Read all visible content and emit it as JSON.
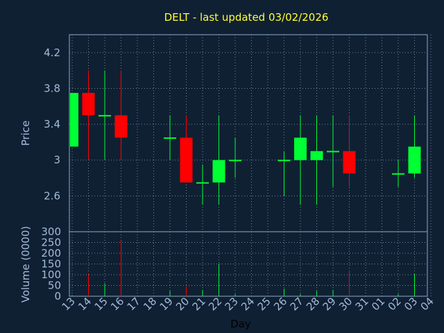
{
  "chart_data": [
    {
      "type": "candlestick",
      "title": "DELT - last updated 03/02/2026",
      "ylabel": "Price",
      "xlabel": "Day",
      "ylim": [
        2.2,
        4.4
      ],
      "yticks": [
        "4.2",
        "3.8",
        "3.4",
        "3",
        "2.6"
      ],
      "categories": [
        "13",
        "14",
        "15",
        "16",
        "17",
        "18",
        "19",
        "20",
        "21",
        "22",
        "23",
        "24",
        "25",
        "26",
        "27",
        "28",
        "29",
        "30",
        "31",
        "01",
        "02",
        "03",
        "04"
      ],
      "candles": [
        {
          "x": "13",
          "open": 3.15,
          "high": 3.75,
          "low": 3.15,
          "close": 3.75
        },
        {
          "x": "14",
          "open": 3.75,
          "high": 4.0,
          "low": 3.0,
          "close": 3.5
        },
        {
          "x": "15",
          "open": 3.49,
          "high": 4.0,
          "low": 3.0,
          "close": 3.5
        },
        {
          "x": "16",
          "open": 3.5,
          "high": 4.0,
          "low": 3.0,
          "close": 3.25
        },
        {
          "x": "19",
          "open": 3.24,
          "high": 3.5,
          "low": 3.0,
          "close": 3.25
        },
        {
          "x": "20",
          "open": 3.25,
          "high": 3.5,
          "low": 2.75,
          "close": 2.75
        },
        {
          "x": "21",
          "open": 2.74,
          "high": 2.95,
          "low": 2.5,
          "close": 2.75
        },
        {
          "x": "22",
          "open": 2.75,
          "high": 3.5,
          "low": 2.5,
          "close": 3.0
        },
        {
          "x": "23",
          "open": 2.99,
          "high": 3.25,
          "low": 2.8,
          "close": 3.0
        },
        {
          "x": "26",
          "open": 2.99,
          "high": 3.1,
          "low": 2.6,
          "close": 3.0
        },
        {
          "x": "27",
          "open": 3.0,
          "high": 3.5,
          "low": 2.5,
          "close": 3.25
        },
        {
          "x": "28",
          "open": 3.0,
          "high": 3.5,
          "low": 2.5,
          "close": 3.1
        },
        {
          "x": "29",
          "open": 3.09,
          "high": 3.5,
          "low": 2.7,
          "close": 3.1
        },
        {
          "x": "30",
          "open": 3.1,
          "high": 3.5,
          "low": 2.7,
          "close": 2.85
        },
        {
          "x": "02",
          "open": 2.84,
          "high": 3.0,
          "low": 2.7,
          "close": 2.85
        },
        {
          "x": "03",
          "open": 2.85,
          "high": 3.5,
          "low": 2.8,
          "close": 3.15
        }
      ],
      "colors": {
        "up": "#00ff33",
        "down": "#ff0000"
      }
    },
    {
      "type": "bar",
      "ylabel": "Volume (0000)",
      "ylim": [
        0,
        300
      ],
      "yticks": [
        "300",
        "250",
        "200",
        "150",
        "100",
        "50",
        "0"
      ],
      "categories": [
        "13",
        "14",
        "15",
        "16",
        "17",
        "18",
        "19",
        "20",
        "21",
        "22",
        "23",
        "24",
        "25",
        "26",
        "27",
        "28",
        "29",
        "30",
        "31",
        "01",
        "02",
        "03",
        "04"
      ],
      "bars": [
        {
          "x": "13",
          "value": 5,
          "direction": "up"
        },
        {
          "x": "14",
          "value": 105,
          "direction": "down"
        },
        {
          "x": "15",
          "value": 60,
          "direction": "up"
        },
        {
          "x": "16",
          "value": 260,
          "direction": "down"
        },
        {
          "x": "19",
          "value": 25,
          "direction": "up"
        },
        {
          "x": "20",
          "value": 45,
          "direction": "down"
        },
        {
          "x": "21",
          "value": 30,
          "direction": "up"
        },
        {
          "x": "22",
          "value": 150,
          "direction": "up"
        },
        {
          "x": "23",
          "value": 10,
          "direction": "up"
        },
        {
          "x": "26",
          "value": 35,
          "direction": "up"
        },
        {
          "x": "27",
          "value": 10,
          "direction": "up"
        },
        {
          "x": "28",
          "value": 25,
          "direction": "up"
        },
        {
          "x": "29",
          "value": 30,
          "direction": "up"
        },
        {
          "x": "30",
          "value": 120,
          "direction": "down"
        },
        {
          "x": "02",
          "value": 10,
          "direction": "up"
        },
        {
          "x": "03",
          "value": 105,
          "direction": "up"
        }
      ],
      "colors": {
        "up": "#00ff33",
        "down": "#ff0000"
      }
    }
  ]
}
